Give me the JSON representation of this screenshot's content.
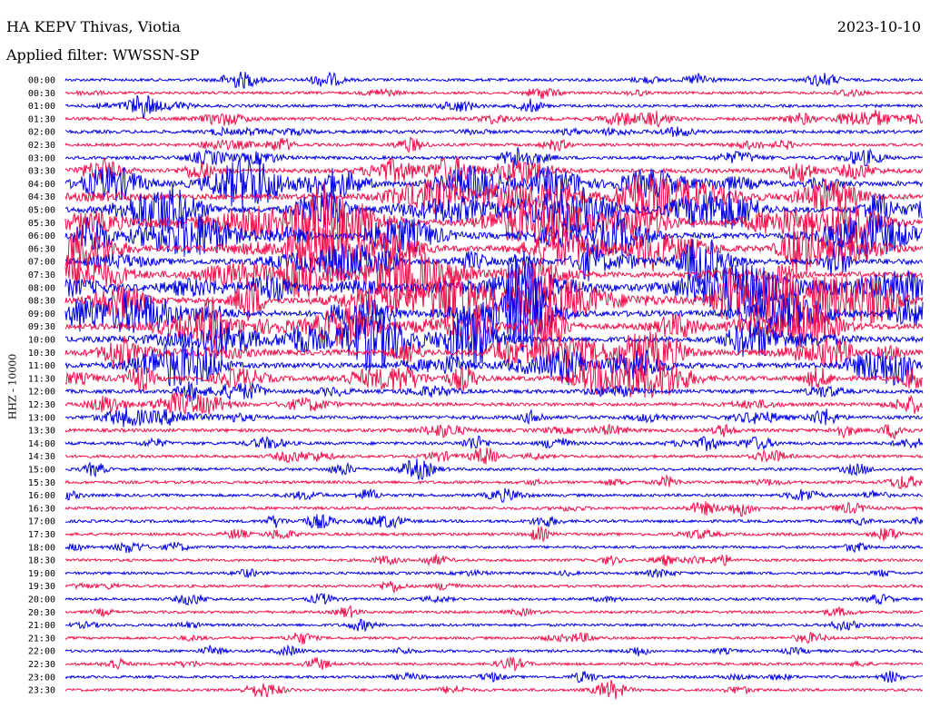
{
  "header": {
    "station": "HA KEPV Thivas, Viotia",
    "date": "2023-10-10",
    "filter": "Applied filter: WWSSN-SP"
  },
  "colors": {
    "line_a": "#0000e6",
    "line_b": "#f0104a"
  },
  "chart_data": {
    "type": "line",
    "title": "HA KEPV Thivas, Viotia",
    "subtitle": "Applied filter: WWSSN-SP",
    "date": "2023-10-10",
    "ylabel": "HHZ - 10000",
    "row_labels": [
      "00:00",
      "00:30",
      "01:00",
      "01:30",
      "02:00",
      "02:30",
      "03:00",
      "03:30",
      "04:00",
      "04:30",
      "05:00",
      "05:30",
      "06:00",
      "06:30",
      "07:00",
      "07:30",
      "08:00",
      "08:30",
      "09:00",
      "09:30",
      "10:00",
      "10:30",
      "11:00",
      "11:30",
      "12:00",
      "12:30",
      "13:00",
      "13:30",
      "14:00",
      "14:30",
      "15:00",
      "15:30",
      "16:00",
      "16:30",
      "17:00",
      "17:30",
      "18:00",
      "18:30",
      "19:00",
      "19:30",
      "20:00",
      "20:30",
      "21:00",
      "21:30",
      "22:00",
      "22:30",
      "23:00",
      "23:30"
    ],
    "row_colors": [
      "line_a",
      "line_b"
    ],
    "row_activity": [
      0.25,
      0.2,
      0.25,
      0.35,
      0.35,
      0.25,
      0.35,
      0.6,
      0.8,
      0.9,
      0.9,
      1.0,
      1.0,
      0.95,
      0.95,
      0.9,
      1.0,
      1.0,
      0.95,
      0.95,
      0.9,
      0.9,
      0.85,
      0.7,
      0.45,
      0.4,
      0.4,
      0.35,
      0.3,
      0.25,
      0.25,
      0.25,
      0.25,
      0.25,
      0.25,
      0.25,
      0.2,
      0.2,
      0.2,
      0.2,
      0.2,
      0.2,
      0.2,
      0.2,
      0.2,
      0.2,
      0.2,
      0.2
    ],
    "grid": false,
    "legend": "none"
  }
}
